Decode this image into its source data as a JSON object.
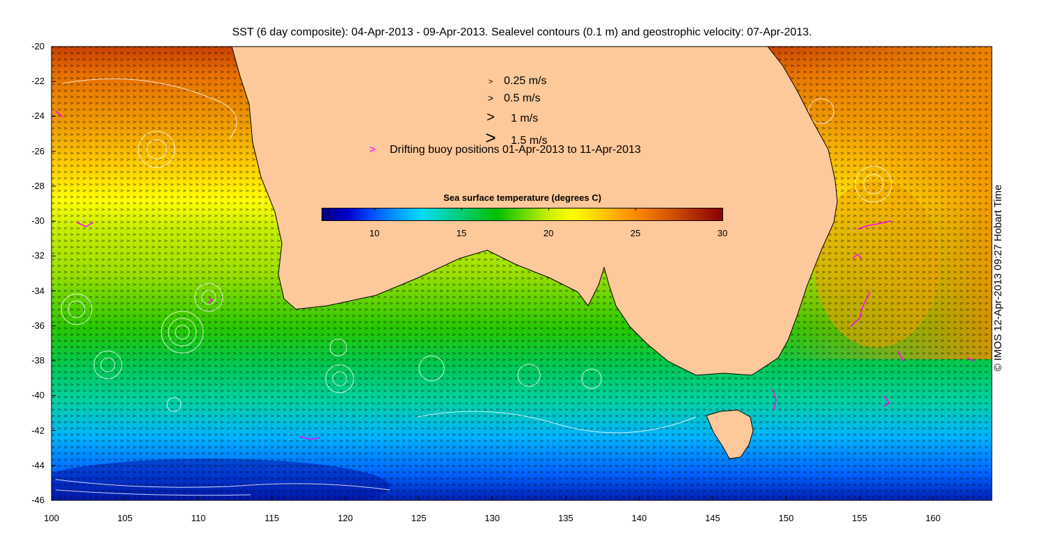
{
  "title": "SST (6 day composite): 04-Apr-2013 - 09-Apr-2013. Sealevel contours (0.1 m) and geostrophic velocity: 07-Apr-2013.",
  "legend": {
    "items": [
      {
        "arrow": ">",
        "label": "0.25 m/s",
        "size": 0.25
      },
      {
        "arrow": ">",
        "label": "0.5 m/s",
        "size": 0.5
      },
      {
        "arrow": ">",
        "label": "1 m/s",
        "size": 1
      },
      {
        "arrow": ">",
        "label": "1.5 m/s",
        "size": 1.5
      }
    ],
    "buoy_arrow": ">",
    "buoy_label": "Drifting buoy positions 01-Apr-2013 to 11-Apr-2013",
    "buoy_color": "#ff00ff"
  },
  "colorbar": {
    "title": "Sea surface temperature (degrees C)",
    "range": [
      7,
      30
    ],
    "ticks": [
      "10",
      "15",
      "20",
      "25",
      "30"
    ],
    "tick_values": [
      10,
      15,
      20,
      25,
      30
    ]
  },
  "credit": "© IMOS 12-Apr-2013 09:27 Hobart Time",
  "axes": {
    "x_ticks": [
      "100",
      "105",
      "110",
      "115",
      "120",
      "125",
      "130",
      "135",
      "140",
      "145",
      "150",
      "155",
      "160"
    ],
    "x_values": [
      100,
      105,
      110,
      115,
      120,
      125,
      130,
      135,
      140,
      145,
      150,
      155,
      160
    ],
    "x_range": [
      100,
      164
    ],
    "y_ticks": [
      "-20",
      "-22",
      "-24",
      "-26",
      "-28",
      "-30",
      "-32",
      "-34",
      "-36",
      "-38",
      "-40",
      "-42",
      "-44",
      "-46"
    ],
    "y_values": [
      -20,
      -22,
      -24,
      -26,
      -28,
      -30,
      -32,
      -34,
      -36,
      -38,
      -40,
      -42,
      -44,
      -46
    ],
    "y_range": [
      -46,
      -20
    ]
  },
  "colors": {
    "land": "#fdc89a",
    "contour": "#ffffff",
    "vector": "#000000",
    "buoy": "#ff00ff"
  }
}
